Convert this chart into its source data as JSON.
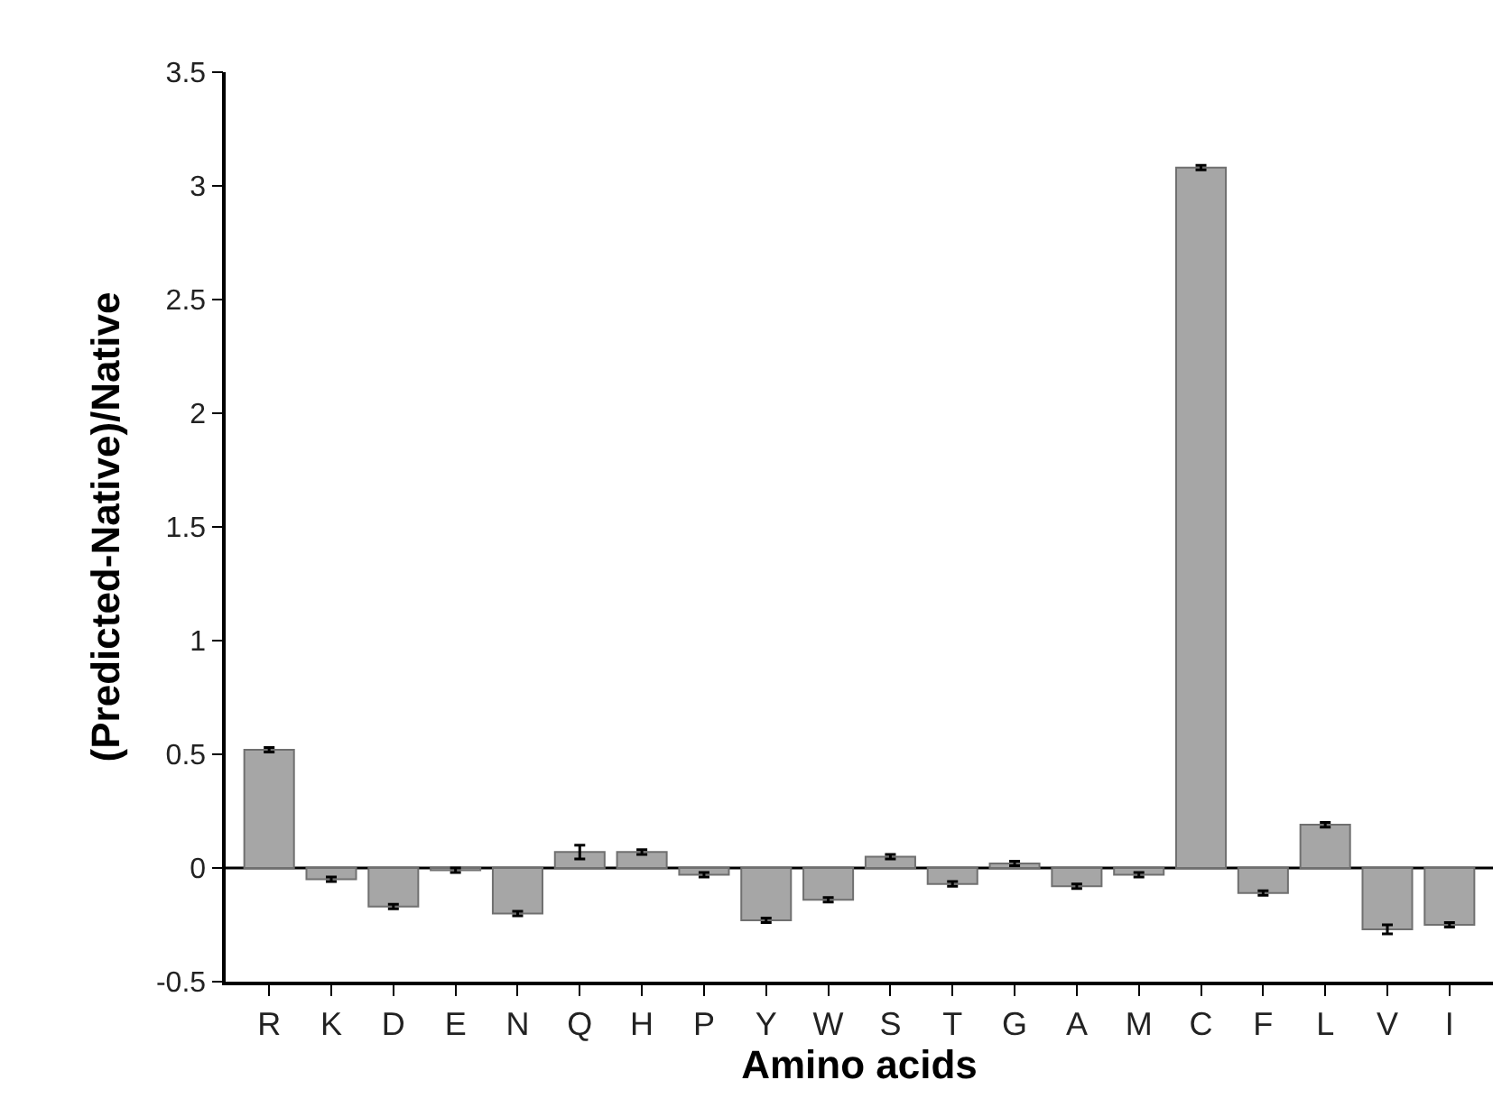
{
  "chart_data": {
    "type": "bar",
    "xlabel": "Amino acids",
    "ylabel": "(Predicted-Native)/Native",
    "categories": [
      "R",
      "K",
      "D",
      "E",
      "N",
      "Q",
      "H",
      "P",
      "Y",
      "W",
      "S",
      "T",
      "G",
      "A",
      "M",
      "C",
      "F",
      "L",
      "V",
      "I"
    ],
    "values": [
      0.52,
      -0.05,
      -0.17,
      -0.01,
      -0.2,
      0.07,
      0.07,
      -0.03,
      -0.23,
      -0.14,
      0.05,
      -0.07,
      0.02,
      -0.08,
      -0.03,
      3.08,
      -0.11,
      0.19,
      -0.27,
      -0.25
    ],
    "errors": [
      0.01,
      0.01,
      0.01,
      0.01,
      0.01,
      0.03,
      0.01,
      0.01,
      0.01,
      0.01,
      0.01,
      0.01,
      0.01,
      0.01,
      0.01,
      0.01,
      0.01,
      0.01,
      0.02,
      0.01
    ],
    "color": "#a6a6a6",
    "ylim": [
      -0.5,
      3.5
    ],
    "yticks": [
      -0.5,
      0,
      0.5,
      1,
      1.5,
      2,
      2.5,
      3,
      3.5
    ],
    "ref_lines": [
      {
        "axis": "y",
        "value": 0,
        "color": "#000000"
      }
    ],
    "grid": false
  }
}
